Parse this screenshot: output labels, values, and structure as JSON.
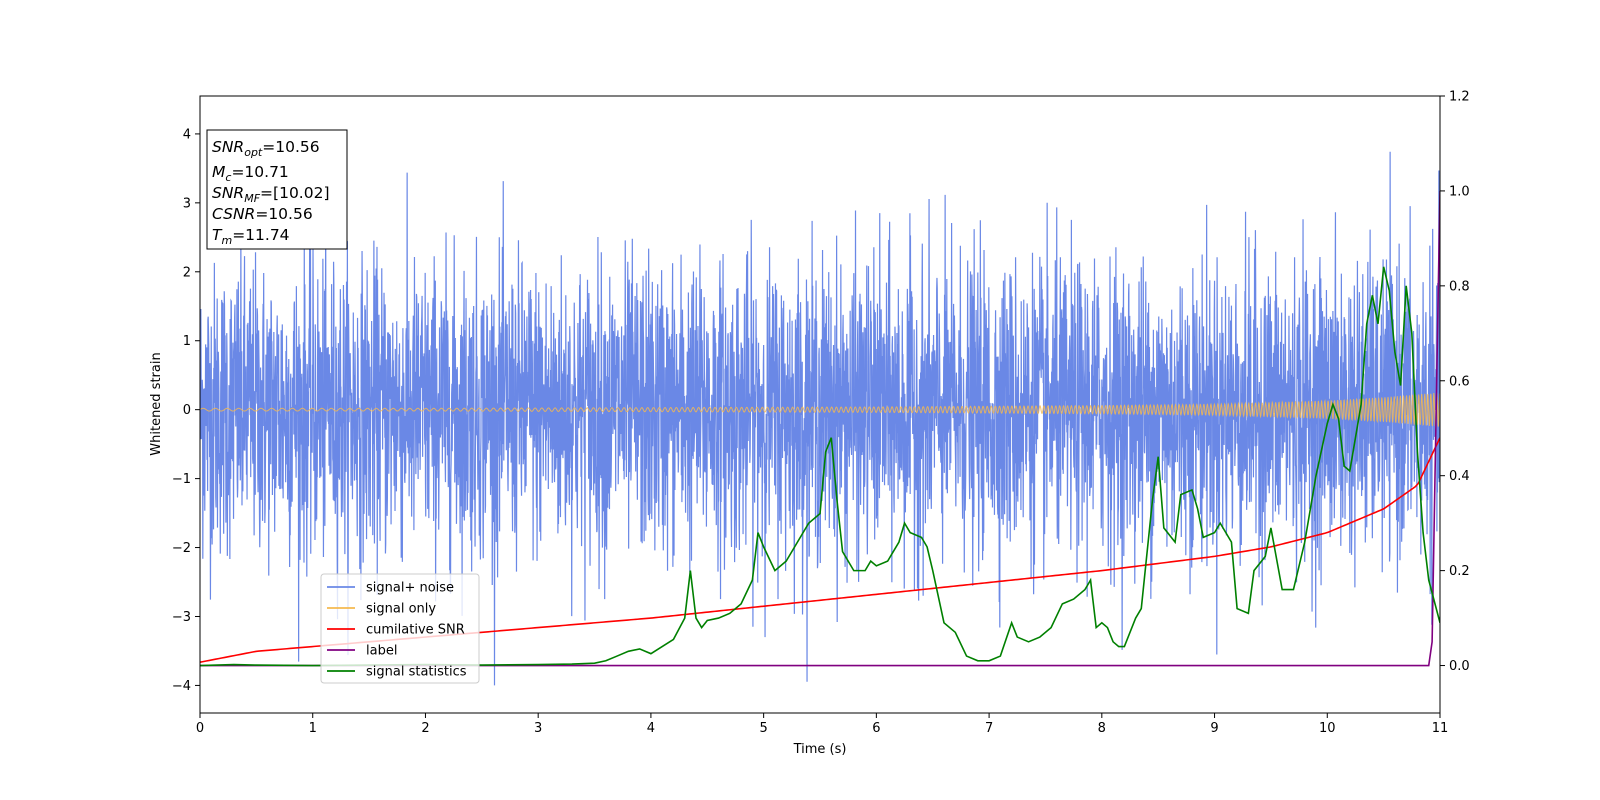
{
  "chart_data": {
    "type": "line",
    "xlabel": "Time (s)",
    "ylabel": "Whitened strain",
    "xlim": [
      0,
      11
    ],
    "ylim": [
      -4.4,
      4.55
    ],
    "y2lim": [
      -0.1,
      1.2
    ],
    "x_ticks": [
      0,
      1,
      2,
      3,
      4,
      5,
      6,
      7,
      8,
      9,
      10,
      11
    ],
    "y_ticks": [
      -4,
      -3,
      -2,
      -1,
      0,
      1,
      2,
      3,
      4
    ],
    "y2_ticks": [
      0.0,
      0.2,
      0.4,
      0.6,
      0.8,
      1.0,
      1.2
    ],
    "grid": false,
    "legend_position": "lower-left",
    "annotation": {
      "lines": [
        {
          "main": "SNR",
          "sub": "opt",
          "value": "=10.56"
        },
        {
          "main": "M",
          "sub": "c",
          "value": "=10.71"
        },
        {
          "main": "SNR",
          "sub": "MF",
          "value": "=[10.02]"
        },
        {
          "main": "CSNR",
          "sub": "",
          "value": "=10.56"
        },
        {
          "main": "T",
          "sub": "m",
          "value": "=11.74"
        }
      ]
    },
    "series": [
      {
        "name": "signal+ noise",
        "axis": "left",
        "color": "#6a88e6",
        "style": "noise",
        "description_values": {
          "center": 0.0,
          "typical_low": -2.0,
          "typical_high": 2.3,
          "min": -4.0,
          "max": 4.15
        }
      },
      {
        "name": "signal only",
        "axis": "left",
        "color": "#f5b94f",
        "style": "chirp",
        "envelope_x": [
          0,
          2,
          4,
          6,
          8,
          9,
          10,
          10.5,
          11
        ],
        "envelope_y": [
          0.02,
          0.02,
          0.03,
          0.04,
          0.06,
          0.08,
          0.13,
          0.18,
          0.25
        ]
      },
      {
        "name": "cumilative SNR",
        "axis": "right",
        "color": "#ff0000",
        "x": [
          0,
          0.5,
          1,
          2,
          3,
          4,
          5,
          6,
          7,
          8,
          9,
          9.5,
          10,
          10.5,
          10.8,
          11
        ],
        "y": [
          0.007,
          0.03,
          0.04,
          0.06,
          0.08,
          0.1,
          0.125,
          0.15,
          0.175,
          0.2,
          0.23,
          0.25,
          0.28,
          0.33,
          0.38,
          0.48
        ]
      },
      {
        "name": "label",
        "axis": "right",
        "color": "#800080",
        "x": [
          0,
          10.9,
          10.93,
          11
        ],
        "y": [
          0.0,
          0.0,
          0.05,
          1.0
        ]
      },
      {
        "name": "signal statistics",
        "axis": "right",
        "color": "#008000",
        "x": [
          0,
          0.3,
          0.5,
          1,
          2,
          2.5,
          3,
          3.3,
          3.5,
          3.6,
          3.7,
          3.8,
          3.9,
          4.0,
          4.1,
          4.2,
          4.3,
          4.35,
          4.4,
          4.45,
          4.5,
          4.6,
          4.7,
          4.8,
          4.9,
          4.95,
          5.0,
          5.1,
          5.15,
          5.2,
          5.3,
          5.4,
          5.5,
          5.55,
          5.6,
          5.65,
          5.7,
          5.8,
          5.9,
          5.95,
          6.0,
          6.1,
          6.2,
          6.25,
          6.3,
          6.4,
          6.45,
          6.5,
          6.6,
          6.7,
          6.8,
          6.9,
          7.0,
          7.1,
          7.2,
          7.25,
          7.35,
          7.45,
          7.55,
          7.65,
          7.75,
          7.85,
          7.9,
          7.95,
          8.0,
          8.05,
          8.1,
          8.15,
          8.2,
          8.3,
          8.35,
          8.45,
          8.5,
          8.55,
          8.65,
          8.7,
          8.8,
          8.85,
          8.9,
          9.0,
          9.05,
          9.1,
          9.15,
          9.2,
          9.3,
          9.35,
          9.45,
          9.5,
          9.6,
          9.7,
          9.8,
          9.9,
          10.0,
          10.05,
          10.1,
          10.15,
          10.2,
          10.3,
          10.35,
          10.4,
          10.45,
          10.5,
          10.55,
          10.6,
          10.65,
          10.7,
          10.75,
          10.8,
          10.85,
          10.9,
          11.0
        ],
        "y": [
          0.0,
          0.002,
          0.001,
          0.0,
          0.002,
          0.001,
          0.002,
          0.003,
          0.005,
          0.01,
          0.02,
          0.03,
          0.035,
          0.025,
          0.04,
          0.055,
          0.1,
          0.2,
          0.1,
          0.08,
          0.095,
          0.1,
          0.11,
          0.13,
          0.18,
          0.28,
          0.25,
          0.2,
          0.21,
          0.22,
          0.26,
          0.3,
          0.32,
          0.45,
          0.48,
          0.35,
          0.24,
          0.2,
          0.2,
          0.22,
          0.21,
          0.22,
          0.26,
          0.3,
          0.28,
          0.27,
          0.25,
          0.2,
          0.09,
          0.07,
          0.02,
          0.01,
          0.01,
          0.02,
          0.09,
          0.06,
          0.05,
          0.06,
          0.08,
          0.13,
          0.14,
          0.16,
          0.18,
          0.08,
          0.09,
          0.08,
          0.05,
          0.04,
          0.04,
          0.1,
          0.12,
          0.35,
          0.44,
          0.29,
          0.26,
          0.36,
          0.37,
          0.33,
          0.27,
          0.28,
          0.3,
          0.28,
          0.26,
          0.12,
          0.11,
          0.2,
          0.23,
          0.29,
          0.16,
          0.16,
          0.26,
          0.4,
          0.51,
          0.55,
          0.52,
          0.42,
          0.41,
          0.55,
          0.72,
          0.78,
          0.72,
          0.84,
          0.79,
          0.66,
          0.59,
          0.8,
          0.7,
          0.45,
          0.28,
          0.18,
          0.09
        ]
      }
    ]
  }
}
